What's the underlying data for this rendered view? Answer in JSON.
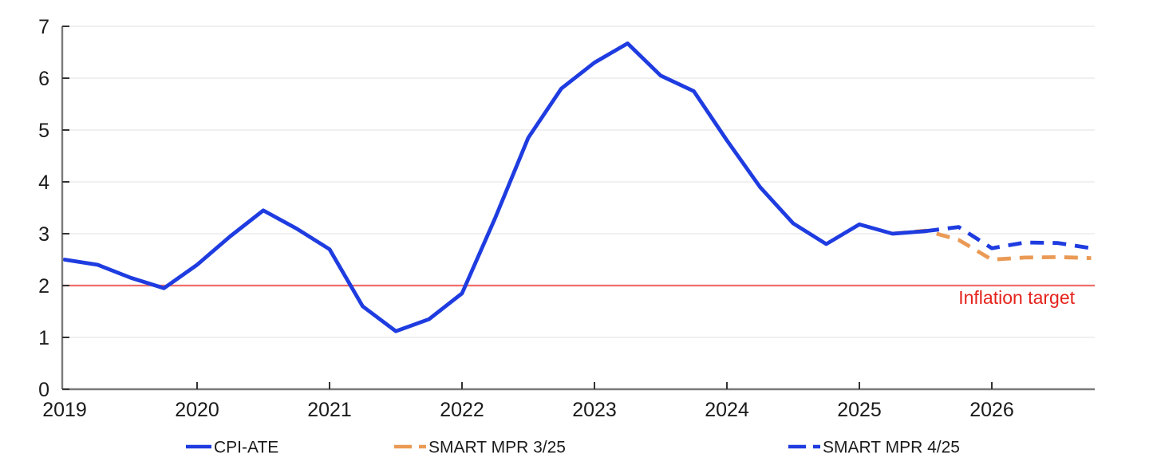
{
  "chart_data": {
    "type": "line",
    "title": "",
    "x_axis": {
      "ticks": [
        2019,
        2020,
        2021,
        2022,
        2023,
        2024,
        2025,
        2026
      ],
      "range": [
        2018.98,
        2026.78
      ]
    },
    "y_axis": {
      "ticks": [
        0,
        1,
        2,
        3,
        4,
        5,
        6,
        7
      ],
      "range": [
        0,
        7
      ],
      "grid": true
    },
    "legend_position": "bottom",
    "series": [
      {
        "name": "CPI-ATE",
        "style": "solid",
        "color": "#1e3ce0",
        "points": [
          [
            2019.0,
            2.5
          ],
          [
            2019.25,
            2.4
          ],
          [
            2019.5,
            2.15
          ],
          [
            2019.75,
            1.95
          ],
          [
            2020.0,
            2.4
          ],
          [
            2020.25,
            2.95
          ],
          [
            2020.5,
            3.45
          ],
          [
            2020.75,
            3.1
          ],
          [
            2021.0,
            2.7
          ],
          [
            2021.25,
            1.6
          ],
          [
            2021.5,
            1.12
          ],
          [
            2021.75,
            1.35
          ],
          [
            2022.0,
            1.85
          ],
          [
            2022.25,
            3.3
          ],
          [
            2022.5,
            4.85
          ],
          [
            2022.75,
            5.8
          ],
          [
            2023.0,
            6.3
          ],
          [
            2023.25,
            6.67
          ],
          [
            2023.5,
            6.05
          ],
          [
            2023.75,
            5.75
          ],
          [
            2024.0,
            4.8
          ],
          [
            2024.25,
            3.9
          ],
          [
            2024.5,
            3.2
          ],
          [
            2024.75,
            2.8
          ],
          [
            2025.0,
            3.18
          ],
          [
            2025.25,
            3.0
          ],
          [
            2025.5,
            3.05
          ]
        ]
      },
      {
        "name": "SMART MPR 3/25",
        "style": "dashed",
        "color": "#ea9a55",
        "points": [
          [
            2025.25,
            3.0
          ],
          [
            2025.5,
            3.06
          ],
          [
            2025.75,
            2.88
          ],
          [
            2026.0,
            2.5
          ],
          [
            2026.25,
            2.54
          ],
          [
            2026.5,
            2.55
          ],
          [
            2026.75,
            2.53
          ]
        ]
      },
      {
        "name": "SMART MPR 4/25",
        "style": "dashed",
        "color": "#1e3ce0",
        "points": [
          [
            2025.5,
            3.05
          ],
          [
            2025.75,
            3.13
          ],
          [
            2026.0,
            2.72
          ],
          [
            2026.25,
            2.83
          ],
          [
            2026.5,
            2.82
          ],
          [
            2026.75,
            2.72
          ]
        ]
      }
    ],
    "reference_line": {
      "value": 2,
      "label": "Inflation target",
      "line_color": "#f06e6b",
      "label_color": "#e5231c"
    },
    "palette": {
      "grid": "#e6e6e6",
      "axis": "#7a7a7a",
      "tick": "#333333",
      "text": "#1b1b1b"
    }
  }
}
